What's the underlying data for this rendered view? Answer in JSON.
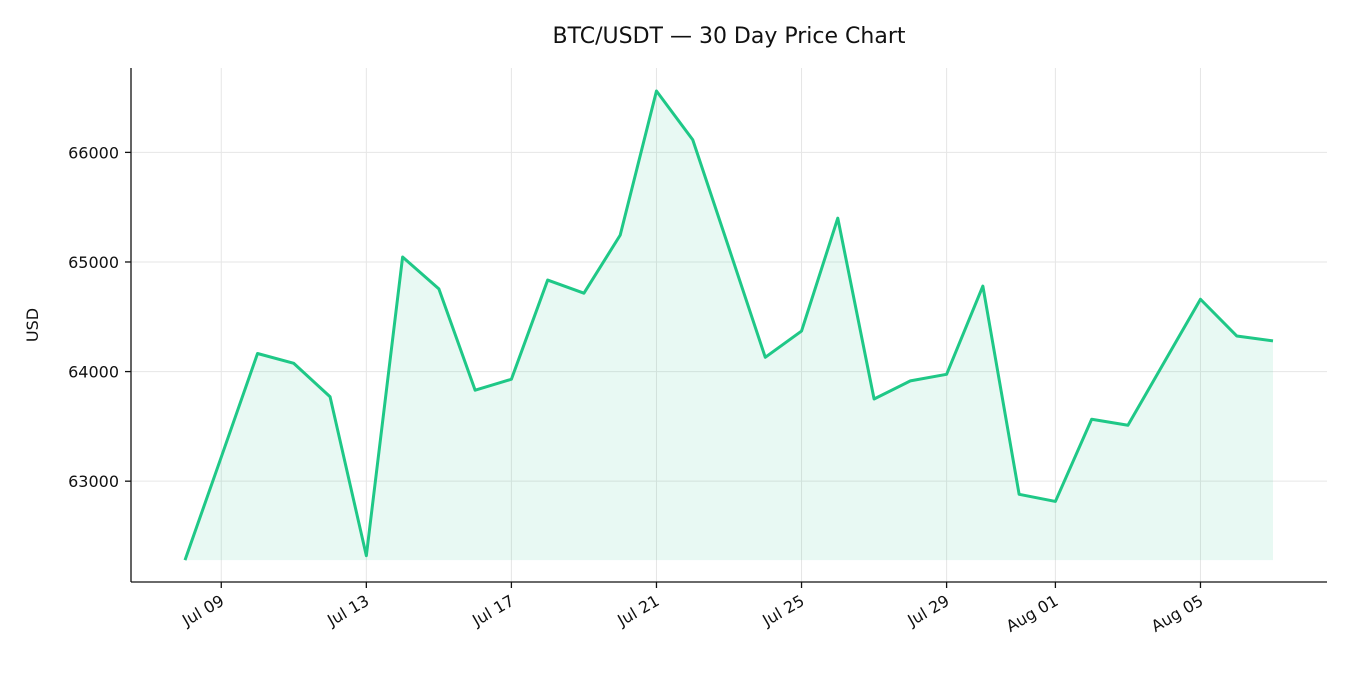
{
  "chart_data": {
    "type": "area-line",
    "title": "BTC/USDT — 30 Day Price Chart",
    "y_label": "USD",
    "x": [
      "Jul 08",
      "Jul 09",
      "Jul 10",
      "Jul 11",
      "Jul 12",
      "Jul 13",
      "Jul 14",
      "Jul 15",
      "Jul 16",
      "Jul 17",
      "Jul 18",
      "Jul 19",
      "Jul 20",
      "Jul 21",
      "Jul 22",
      "Jul 23",
      "Jul 24",
      "Jul 25",
      "Jul 26",
      "Jul 27",
      "Jul 28",
      "Jul 29",
      "Jul 30",
      "Jul 31",
      "Aug 01",
      "Aug 02",
      "Aug 03",
      "Aug 04",
      "Aug 05",
      "Aug 06",
      "Aug 07"
    ],
    "series": [
      {
        "color": "#1fc887",
        "values": [
          62280,
          63220,
          64165,
          64075,
          63770,
          62320,
          65045,
          64755,
          63830,
          63930,
          64835,
          64715,
          65245,
          66560,
          66115,
          65125,
          64130,
          64370,
          65400,
          63750,
          63915,
          63975,
          64780,
          62880,
          62815,
          63565,
          63510,
          64085,
          64660,
          64325,
          64280
        ]
      }
    ],
    "ylim": [
      62080,
      66770
    ],
    "yticks": [
      63000,
      64000,
      65000,
      66000
    ],
    "xticks": [
      "Jul 09",
      "Jul 13",
      "Jul 17",
      "Jul 21",
      "Jul 25",
      "Jul 29",
      "Aug 01",
      "Aug 05"
    ],
    "grid": true
  }
}
